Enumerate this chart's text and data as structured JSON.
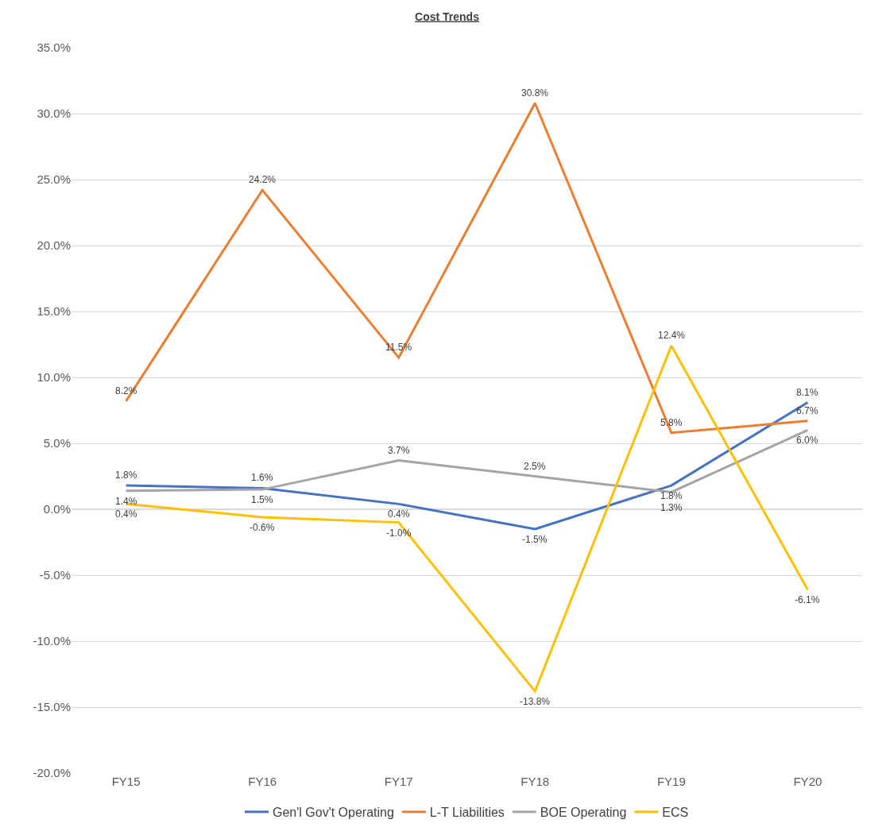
{
  "chart_data": {
    "type": "line",
    "title": "Cost Trends",
    "categories": [
      "FY15",
      "FY16",
      "FY17",
      "FY18",
      "FY19",
      "FY20"
    ],
    "series": [
      {
        "name": "Gen'l Gov't Operating",
        "color": "#4472c4",
        "values": [
          1.8,
          1.6,
          0.4,
          -1.5,
          1.8,
          8.1
        ],
        "value_labels": [
          "1.8%",
          "1.6%",
          "0.4%",
          "-1.5%",
          "1.8%",
          "8.1%"
        ]
      },
      {
        "name": "L-T Liabilities",
        "color": "#ed7d31",
        "values": [
          8.2,
          24.2,
          11.5,
          30.8,
          5.8,
          6.7
        ],
        "value_labels": [
          "8.2%",
          "24.2%",
          "11.5%",
          "30.8%",
          "5.8%",
          "6.7%"
        ]
      },
      {
        "name": "BOE Operating",
        "color": "#a5a5a5",
        "values": [
          1.4,
          1.5,
          3.7,
          2.5,
          1.3,
          6.0
        ],
        "value_labels": [
          "1.4%",
          "1.5%",
          "3.7%",
          "2.5%",
          "1.3%",
          "6.0%"
        ]
      },
      {
        "name": "ECS",
        "color": "#ffc000",
        "values": [
          0.4,
          -0.6,
          -1.0,
          -13.8,
          12.4,
          -6.1
        ],
        "value_labels": [
          "0.4%",
          "-0.6%",
          "-1.0%",
          "-13.8%",
          "12.4%",
          "-6.1%"
        ]
      }
    ],
    "ylim": [
      -20,
      35
    ],
    "yticks": [
      {
        "value": -20,
        "label": "-20.0%"
      },
      {
        "value": -15,
        "label": "-15.0%"
      },
      {
        "value": -10,
        "label": "-10.0%"
      },
      {
        "value": -5,
        "label": "-5.0%"
      },
      {
        "value": 0,
        "label": "0.0%"
      },
      {
        "value": 5,
        "label": "5.0%"
      },
      {
        "value": 10,
        "label": "10.0%"
      },
      {
        "value": 15,
        "label": "15.0%"
      },
      {
        "value": 20,
        "label": "20.0%"
      },
      {
        "value": 25,
        "label": "25.0%"
      },
      {
        "value": 30,
        "label": "30.0%"
      },
      {
        "value": 35,
        "label": "35.0%"
      }
    ],
    "grid": "y",
    "legend": "bottom",
    "marker": "none",
    "line_style": "solid"
  }
}
